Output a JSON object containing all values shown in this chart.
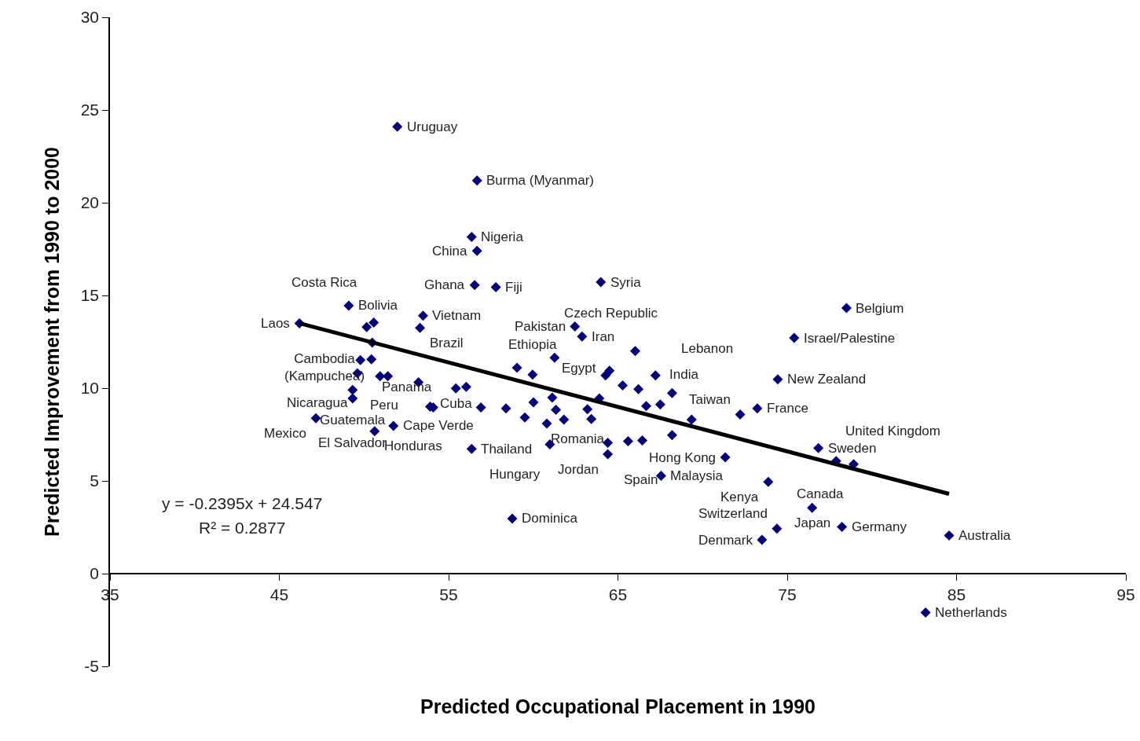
{
  "chart_data": {
    "type": "scatter",
    "xlabel": "Predicted Occupational Placement in 1990",
    "ylabel": "Predicted Improvement from 1990 to 2000",
    "xlim": [
      35,
      95
    ],
    "xticks": [
      35,
      45,
      55,
      65,
      75,
      85,
      95
    ],
    "ylim": [
      -5,
      30
    ],
    "yticks": [
      -5,
      0,
      5,
      10,
      15,
      20,
      25,
      30
    ],
    "marker": "diamond",
    "series": [
      {
        "color": "#000080",
        "x": [
          51.97,
          56.68,
          56.36,
          56.68,
          56.54,
          57.79,
          63.99,
          49.1,
          46.19,
          53.49,
          50.16,
          53.31,
          50.58,
          50.49,
          49.79,
          49.61,
          62.46,
          62.88,
          61.26,
          75.41,
          78.5,
          74.44,
          73.23,
          72.22,
          76.84,
          71.34,
          77.89,
          78.92,
          67.55,
          73.88,
          76.47,
          74.39,
          78.23,
          73.51,
          84.56,
          83.17,
          58.76,
          56.36,
          47.16,
          50.63,
          51.74,
          49.33,
          49.33,
          64.4,
          60.98,
          60.8,
          67.5,
          61.12,
          59.96,
          55.43,
          68.2,
          68.2,
          66.02,
          50.44,
          50.95,
          51.41,
          53.22,
          53.91,
          54.09,
          56.04,
          59.04,
          56.91,
          58.39,
          60.01,
          59.5,
          61.34,
          61.81,
          63.2,
          63.43,
          63.9,
          64.5,
          64.27,
          65.28,
          66.21,
          66.67,
          67.22,
          69.35,
          66.44,
          65.6,
          64.4
        ],
        "values": [
          24.1,
          21.2,
          18.16,
          17.4,
          15.56,
          15.44,
          15.72,
          14.45,
          13.5,
          13.91,
          13.29,
          13.25,
          13.54,
          12.46,
          11.51,
          10.81,
          13.33,
          12.79,
          11.64,
          12.71,
          14.32,
          10.48,
          8.91,
          8.58,
          6.77,
          6.27,
          6.07,
          5.9,
          5.28,
          4.95,
          3.55,
          2.43,
          2.52,
          1.82,
          2.06,
          -2.1,
          2.97,
          6.73,
          8.38,
          7.68,
          7.97,
          9.9,
          9.45,
          6.44,
          6.97,
          8.09,
          9.12,
          9.49,
          10.73,
          9.99,
          9.74,
          7.47,
          12.0,
          11.56,
          10.65,
          10.65,
          10.32,
          9.0,
          8.96,
          10.07,
          11.1,
          8.96,
          8.91,
          9.24,
          8.42,
          8.83,
          8.3,
          8.87,
          8.34,
          9.45,
          10.94,
          10.69,
          10.15,
          9.95,
          9.04,
          10.69,
          8.3,
          7.18,
          7.14,
          7.06
        ]
      },
      {
        "type": "line",
        "color": "#000000",
        "marker": "none",
        "line_style": "solid",
        "x": [
          46.19,
          84.56
        ],
        "values": [
          13.5,
          4.3
        ]
      }
    ],
    "annotations": [
      {
        "text": "Uruguay",
        "x": 51.97,
        "y": 24.1
      },
      {
        "text": "Burma (Myanmar)",
        "x": 56.68,
        "y": 21.2
      },
      {
        "text": "Nigeria",
        "x": 56.36,
        "y": 18.16
      },
      {
        "text": "China",
        "x": 56.68,
        "y": 17.4
      },
      {
        "text": "Ghana",
        "x": 56.54,
        "y": 15.56
      },
      {
        "text": "Fiji",
        "x": 57.79,
        "y": 15.44
      },
      {
        "text": "Syria",
        "x": 63.99,
        "y": 15.72
      },
      {
        "text": "Bolivia",
        "x": 49.1,
        "y": 14.45
      },
      {
        "text": "Laos",
        "x": 46.19,
        "y": 13.5
      },
      {
        "text": "Vietnam",
        "x": 53.49,
        "y": 13.91
      },
      {
        "text": "Costa Rica",
        "x": 50.16,
        "y": 13.29
      },
      {
        "text": "Brazil",
        "x": 53.31,
        "y": 13.25
      },
      {
        "text": "Cambodia\n(Kampuchea)",
        "x": 50.58,
        "y": 13.54
      },
      {
        "text": "Panama",
        "x": 50.49,
        "y": 12.46
      },
      {
        "text": "Peru",
        "x": 49.79,
        "y": 11.51
      },
      {
        "text": "Nicaragua",
        "x": 49.61,
        "y": 10.81
      },
      {
        "text": "Pakistan",
        "x": 62.46,
        "y": 13.33
      },
      {
        "text": "Iran",
        "x": 62.88,
        "y": 12.79
      },
      {
        "text": "Czech Republic",
        "x": 61.26,
        "y": 11.64
      },
      {
        "text": "Israel/Palestine",
        "x": 75.41,
        "y": 12.71
      },
      {
        "text": "Belgium",
        "x": 78.5,
        "y": 14.32
      },
      {
        "text": "New Zealand",
        "x": 74.44,
        "y": 10.48
      },
      {
        "text": "France",
        "x": 73.23,
        "y": 8.91
      },
      {
        "text": "Taiwan",
        "x": 72.22,
        "y": 8.58
      },
      {
        "text": "Sweden",
        "x": 76.84,
        "y": 6.77
      },
      {
        "text": "Hong Kong",
        "x": 71.34,
        "y": 6.27
      },
      {
        "text": "United Kingdom",
        "x": 77.89,
        "y": 6.07
      },
      {
        "text": "Canada",
        "x": 78.92,
        "y": 5.9
      },
      {
        "text": "Malaysia",
        "x": 67.55,
        "y": 5.28
      },
      {
        "text": "Kenya",
        "x": 73.88,
        "y": 4.95
      },
      {
        "text": "Japan",
        "x": 76.47,
        "y": 3.55
      },
      {
        "text": "Switzerland",
        "x": 74.39,
        "y": 2.43
      },
      {
        "text": "Germany",
        "x": 78.23,
        "y": 2.52
      },
      {
        "text": "Denmark",
        "x": 73.51,
        "y": 1.82
      },
      {
        "text": "Australia",
        "x": 84.56,
        "y": 2.06
      },
      {
        "text": "Netherlands",
        "x": 83.17,
        "y": -2.1
      },
      {
        "text": "Dominica",
        "x": 58.76,
        "y": 2.97
      },
      {
        "text": "Thailand",
        "x": 56.36,
        "y": 6.73
      },
      {
        "text": "Mexico",
        "x": 47.16,
        "y": 8.38
      },
      {
        "text": "Honduras",
        "x": 50.63,
        "y": 7.68
      },
      {
        "text": "Cape Verde",
        "x": 51.74,
        "y": 7.97
      },
      {
        "text": "Guatemala",
        "x": 49.33,
        "y": 9.9
      },
      {
        "text": "El Salvador",
        "x": 49.33,
        "y": 9.45
      },
      {
        "text": "Jordan",
        "x": 64.4,
        "y": 6.44
      },
      {
        "text": "Hungary",
        "x": 60.98,
        "y": 6.97
      },
      {
        "text": "Romania",
        "x": 60.8,
        "y": 8.09
      },
      {
        "text": "India",
        "x": 67.5,
        "y": 9.12
      },
      {
        "text": "Egypt",
        "x": 61.12,
        "y": 9.49
      },
      {
        "text": "Ethiopia",
        "x": 59.96,
        "y": 10.73
      },
      {
        "text": "Cuba",
        "x": 55.43,
        "y": 9.99
      },
      {
        "text": "Lebanon",
        "x": 68.2,
        "y": 9.74
      },
      {
        "text": "Spain",
        "x": 68.2,
        "y": 7.47
      },
      "y = -0.2395x + 24.547",
      "R² = 0.2877"
    ]
  }
}
